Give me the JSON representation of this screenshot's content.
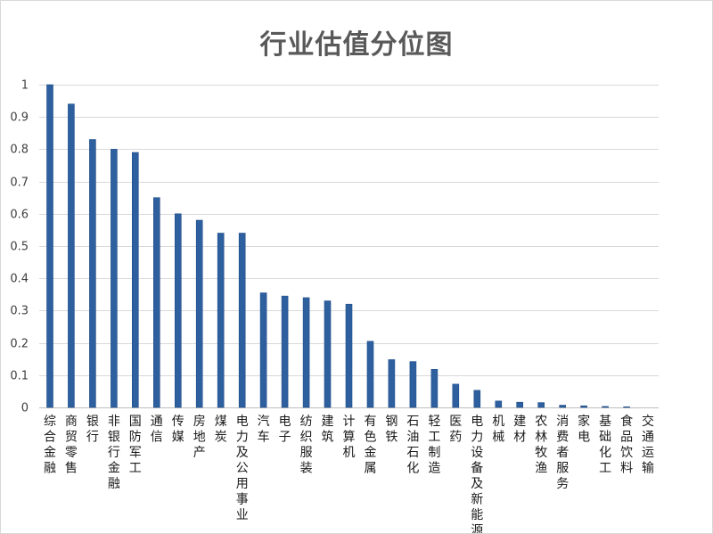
{
  "chart_data": {
    "type": "bar",
    "title": "行业估值分位图",
    "xlabel": "",
    "ylabel": "",
    "ylim": [
      0,
      1
    ],
    "y_ticks": [
      "0",
      "0.1",
      "0.2",
      "0.3",
      "0.4",
      "0.5",
      "0.6",
      "0.7",
      "0.8",
      "0.9",
      "1"
    ],
    "grid": true,
    "legend": "none",
    "bar_color": "#2e5f9e",
    "categories": [
      "综合金融",
      "商贸零售",
      "银行",
      "非银行金融",
      "国防军工",
      "通信",
      "传媒",
      "房地产",
      "煤炭",
      "电力及公用事业",
      "汽车",
      "电子",
      "纺织服装",
      "建筑",
      "计算机",
      "有色金属",
      "钢铁",
      "石油石化",
      "轻工制造",
      "医药",
      "电力设备及新能源",
      "机械",
      "建材",
      "农林牧渔",
      "消费者服务",
      "家电",
      "基础化工",
      "食品饮料",
      "交通运输"
    ],
    "values": [
      1.0,
      0.94,
      0.83,
      0.8,
      0.79,
      0.65,
      0.6,
      0.58,
      0.54,
      0.54,
      0.355,
      0.345,
      0.34,
      0.33,
      0.32,
      0.205,
      0.148,
      0.142,
      0.118,
      0.072,
      0.053,
      0.02,
      0.016,
      0.015,
      0.007,
      0.005,
      0.003,
      0.002,
      0.0
    ]
  }
}
